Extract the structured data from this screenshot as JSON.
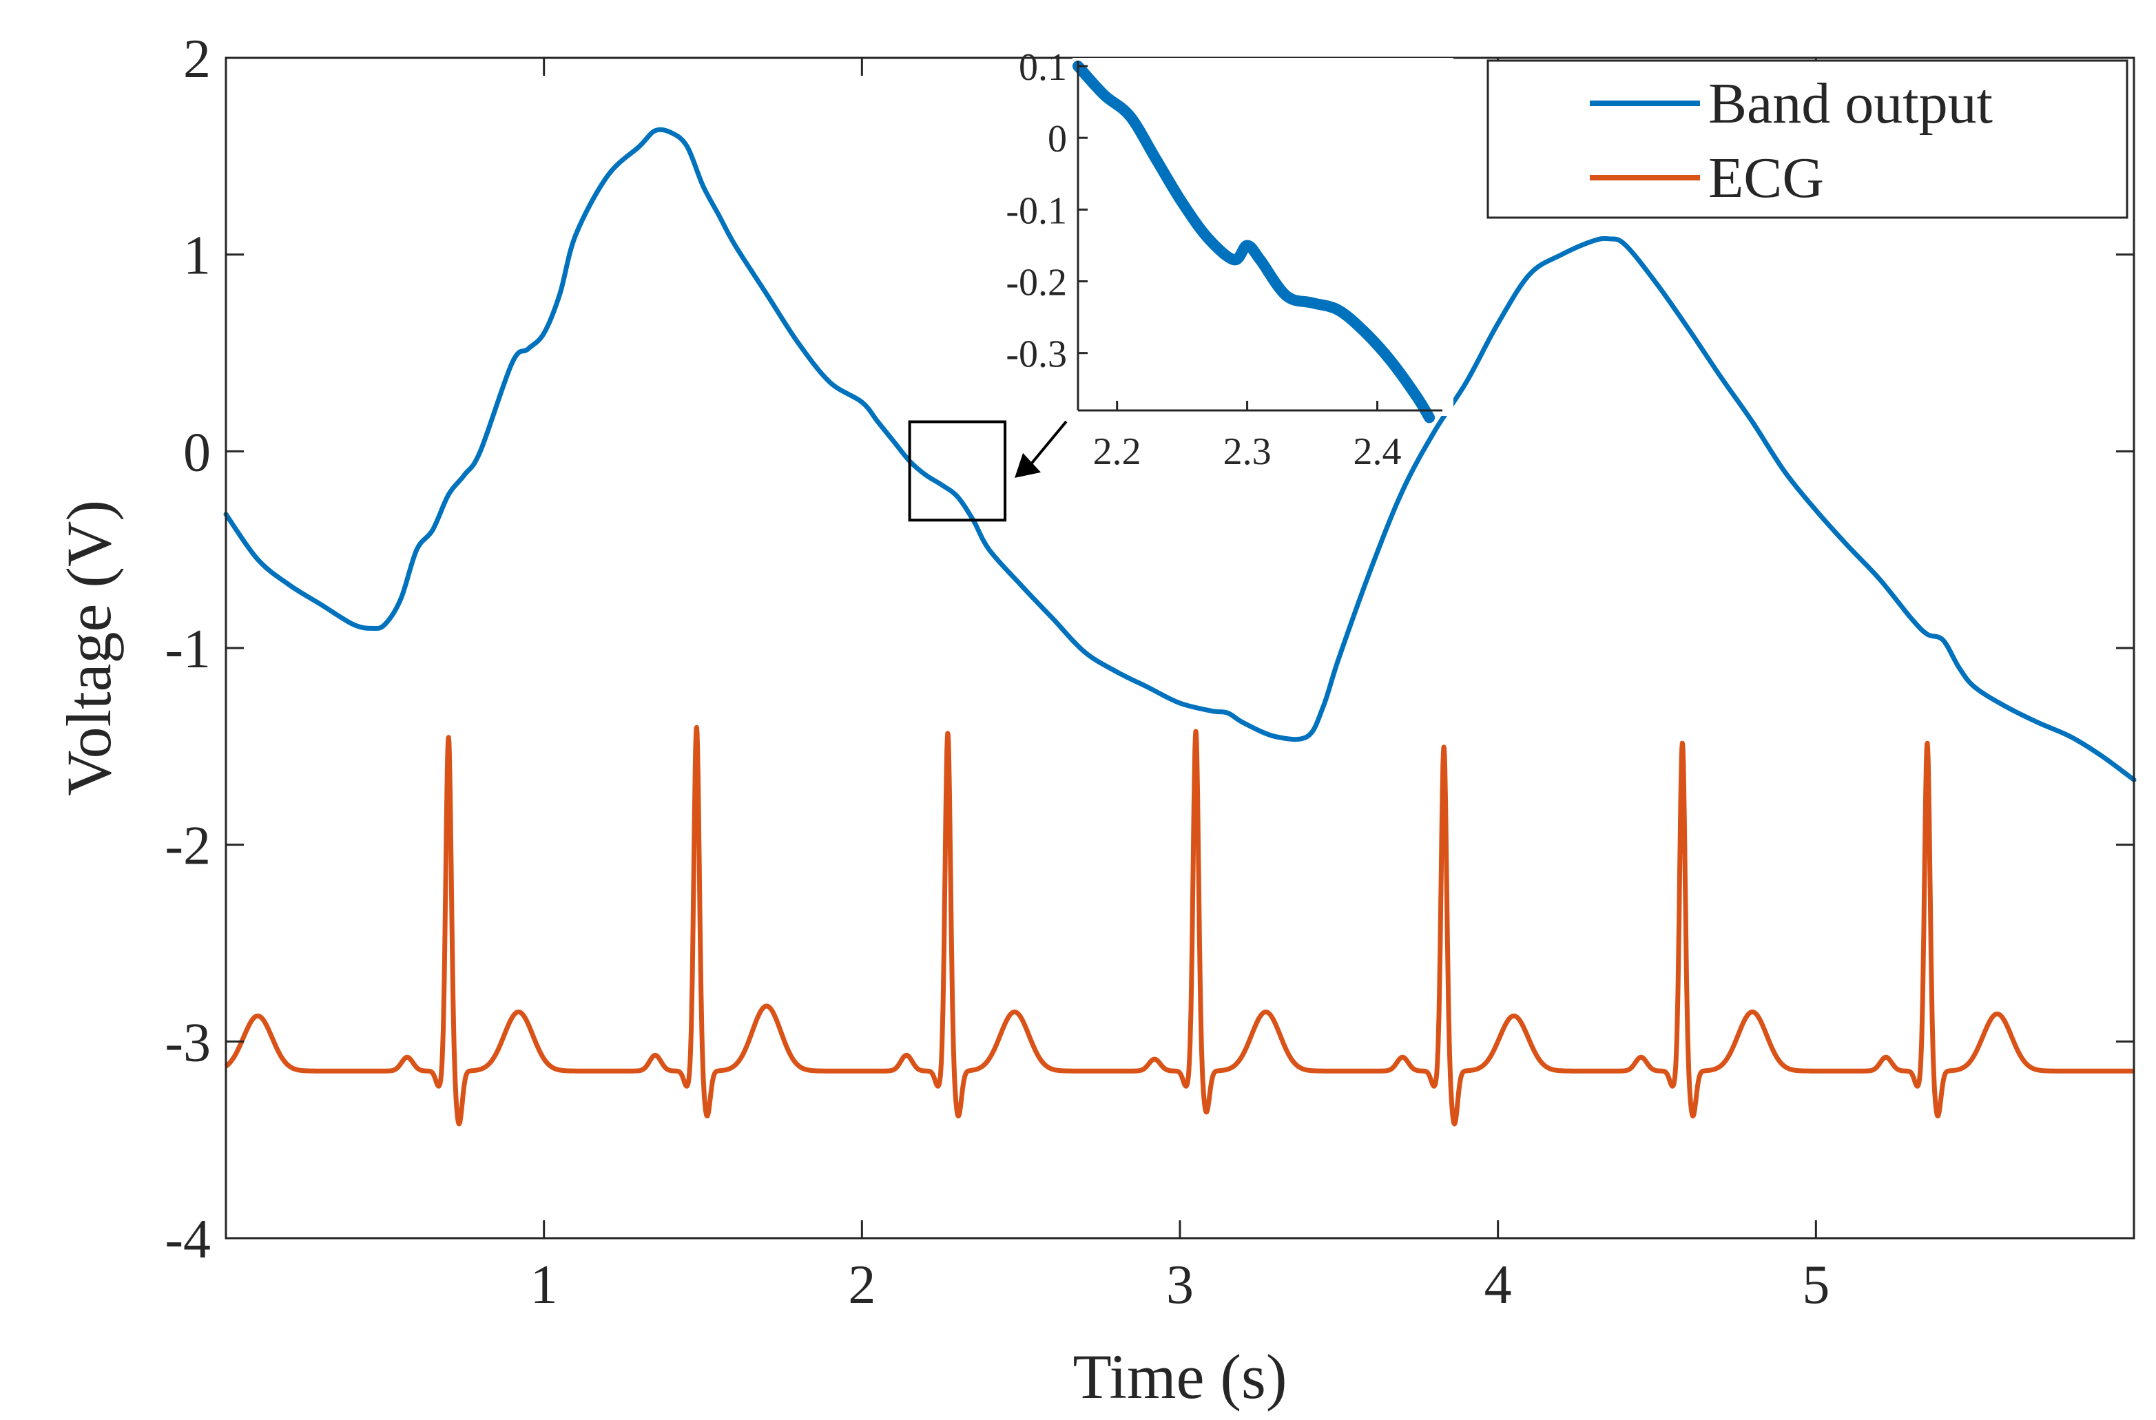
{
  "chart_data": {
    "type": "line",
    "title": "",
    "xlabel": "Time (s)",
    "ylabel": "Voltage (V)",
    "xlim": [
      0,
      6
    ],
    "ylim": [
      -4,
      2
    ],
    "xticks": [
      1,
      2,
      3,
      4,
      5
    ],
    "yticks": [
      2,
      1,
      0,
      -1,
      -2,
      -3,
      -4
    ],
    "xtick_labels": [
      "1",
      "2",
      "3",
      "4",
      "5"
    ],
    "ytick_labels": [
      "2",
      "1",
      "0",
      "-1",
      "-2",
      "-3",
      "-4"
    ],
    "grid": false,
    "legend": {
      "position": "top-right",
      "entries": [
        "Band output",
        "ECG"
      ]
    },
    "series": [
      {
        "name": "Band output",
        "color": "#0072BD",
        "x": [
          0,
          0.1,
          0.2,
          0.3,
          0.4,
          0.46,
          0.5,
          0.55,
          0.6,
          0.65,
          0.7,
          0.75,
          0.8,
          0.9,
          0.95,
          1.0,
          1.05,
          1.1,
          1.2,
          1.3,
          1.35,
          1.4,
          1.45,
          1.5,
          1.55,
          1.6,
          1.7,
          1.8,
          1.9,
          2.0,
          2.05,
          2.1,
          2.15,
          2.2,
          2.25,
          2.3,
          2.35,
          2.4,
          2.5,
          2.6,
          2.7,
          2.8,
          2.9,
          3.0,
          3.1,
          3.15,
          3.2,
          3.3,
          3.4,
          3.45,
          3.5,
          3.6,
          3.7,
          3.8,
          3.9,
          4.0,
          4.1,
          4.2,
          4.3,
          4.35,
          4.4,
          4.5,
          4.6,
          4.7,
          4.8,
          4.9,
          5.0,
          5.1,
          5.2,
          5.3,
          5.35,
          5.4,
          5.45,
          5.5,
          5.6,
          5.7,
          5.8,
          5.9,
          6.0
        ],
        "y": [
          -0.32,
          -0.55,
          -0.68,
          -0.78,
          -0.88,
          -0.9,
          -0.88,
          -0.75,
          -0.5,
          -0.4,
          -0.22,
          -0.12,
          0.0,
          0.45,
          0.52,
          0.6,
          0.8,
          1.1,
          1.4,
          1.55,
          1.63,
          1.62,
          1.55,
          1.35,
          1.2,
          1.05,
          0.8,
          0.55,
          0.35,
          0.25,
          0.15,
          0.05,
          -0.05,
          -0.12,
          -0.17,
          -0.23,
          -0.35,
          -0.5,
          -0.68,
          -0.85,
          -1.02,
          -1.12,
          -1.2,
          -1.28,
          -1.32,
          -1.33,
          -1.38,
          -1.45,
          -1.45,
          -1.3,
          -1.05,
          -0.6,
          -0.2,
          0.1,
          0.35,
          0.65,
          0.9,
          1.0,
          1.07,
          1.08,
          1.05,
          0.85,
          0.62,
          0.38,
          0.15,
          -0.1,
          -0.3,
          -0.48,
          -0.65,
          -0.85,
          -0.93,
          -0.96,
          -1.1,
          -1.2,
          -1.3,
          -1.38,
          -1.45,
          -1.55,
          -1.67
        ]
      },
      {
        "name": "ECG",
        "color": "#D95319",
        "baseline": -3.15,
        "r_peak_times": [
          0.7,
          1.48,
          2.27,
          3.05,
          3.83,
          4.58,
          5.35
        ],
        "r_peak_values": [
          -1.45,
          -1.4,
          -1.43,
          -1.42,
          -1.5,
          -1.48,
          -1.48
        ],
        "s_wave_values": [
          -3.42,
          -3.38,
          -3.38,
          -3.36,
          -3.42,
          -3.38,
          -3.38
        ],
        "t_wave_times": [
          0.1,
          0.92,
          1.7,
          2.48,
          3.27,
          4.05,
          4.8,
          5.57
        ],
        "t_wave_values": [
          -2.87,
          -2.85,
          -2.82,
          -2.85,
          -2.85,
          -2.87,
          -2.85,
          -2.86
        ],
        "p_wave_values": [
          -3.08,
          -3.07,
          -3.07,
          -3.09,
          -3.08,
          -3.08,
          -3.08
        ]
      }
    ],
    "inset": {
      "xlim": [
        2.17,
        2.45
      ],
      "ylim": [
        -0.38,
        0.1
      ],
      "xticks": [
        2.2,
        2.3,
        2.4
      ],
      "yticks": [
        0.1,
        0,
        -0.1,
        -0.2,
        -0.3
      ],
      "xtick_labels": [
        "2.2",
        "2.3",
        "2.4"
      ],
      "ytick_labels": [
        "0.1",
        "0",
        "-0.1",
        "-0.2",
        "-0.3"
      ],
      "x": [
        2.17,
        2.19,
        2.21,
        2.23,
        2.25,
        2.27,
        2.29,
        2.3,
        2.31,
        2.33,
        2.35,
        2.37,
        2.39,
        2.41,
        2.43,
        2.44
      ],
      "y": [
        0.1,
        0.06,
        0.03,
        -0.03,
        -0.09,
        -0.14,
        -0.17,
        -0.15,
        -0.17,
        -0.22,
        -0.23,
        -0.24,
        -0.27,
        -0.31,
        -0.36,
        -0.39
      ],
      "highlight_box": {
        "x": [
          2.15,
          2.45
        ],
        "y": [
          -0.35,
          0.15
        ]
      }
    }
  }
}
